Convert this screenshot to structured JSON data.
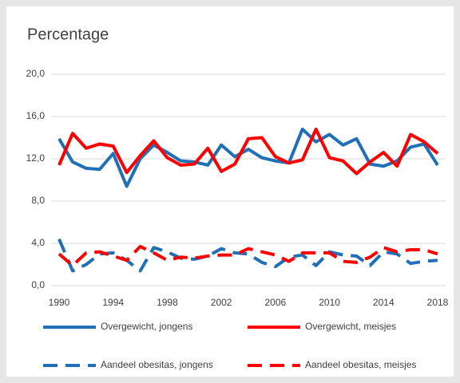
{
  "chart_data": {
    "type": "line",
    "title": "Percentage",
    "x": [
      1990,
      1991,
      1992,
      1993,
      1994,
      1995,
      1996,
      1997,
      1998,
      1999,
      2000,
      2001,
      2002,
      2003,
      2004,
      2005,
      2006,
      2007,
      2008,
      2009,
      2010,
      2011,
      2012,
      2013,
      2014,
      2015,
      2016,
      2017,
      2018
    ],
    "xlim": [
      1990,
      2018
    ],
    "xticks": [
      1990,
      1994,
      1998,
      2002,
      2006,
      2010,
      2014,
      2018
    ],
    "ylim": [
      0,
      20
    ],
    "yticks": [
      {
        "value": 0,
        "label": "0,0"
      },
      {
        "value": 4,
        "label": "4,0"
      },
      {
        "value": 8,
        "label": "8,0"
      },
      {
        "value": 12,
        "label": "12,0"
      },
      {
        "value": 16,
        "label": "16,0"
      },
      {
        "value": 20,
        "label": "20,0"
      }
    ],
    "grid": true,
    "legend": "bottom",
    "series": [
      {
        "name": "Overgewicht, jongens",
        "color": "#1f70b8",
        "dashed": false,
        "values": [
          13.9,
          11.7,
          11.1,
          11.0,
          12.5,
          9.4,
          12.0,
          13.3,
          12.6,
          11.8,
          11.7,
          11.4,
          13.3,
          12.2,
          12.9,
          12.1,
          11.8,
          11.6,
          14.8,
          13.6,
          14.3,
          13.3,
          13.9,
          11.5,
          11.3,
          11.8,
          13.1,
          13.4,
          11.4
        ]
      },
      {
        "name": "Overgewicht, meisjes",
        "color": "#ff0000",
        "dashed": false,
        "values": [
          11.4,
          14.4,
          13.0,
          13.4,
          13.2,
          10.7,
          12.3,
          13.7,
          12.1,
          11.4,
          11.5,
          13.0,
          10.8,
          11.5,
          13.9,
          14.0,
          12.2,
          11.6,
          11.9,
          14.8,
          12.1,
          11.8,
          10.6,
          11.7,
          12.6,
          11.3,
          14.3,
          13.6,
          12.5
        ]
      },
      {
        "name": "Aandeel obesitas, jongens",
        "color": "#1f70b8",
        "dashed": true,
        "values": [
          4.4,
          1.4,
          2.0,
          3.0,
          3.1,
          2.4,
          1.4,
          3.6,
          3.2,
          2.6,
          2.5,
          2.8,
          3.5,
          3.1,
          3.0,
          2.2,
          1.8,
          2.7,
          2.9,
          1.9,
          3.2,
          2.9,
          2.8,
          1.9,
          3.2,
          3.0,
          2.1,
          2.3,
          2.4
        ]
      },
      {
        "name": "Aandeel obesitas, meisjes",
        "color": "#ff0000",
        "dashed": true,
        "values": [
          3.0,
          1.9,
          3.1,
          3.2,
          2.8,
          2.4,
          3.7,
          3.1,
          2.4,
          2.7,
          2.6,
          2.8,
          2.9,
          2.9,
          3.5,
          3.2,
          2.9,
          2.3,
          3.1,
          3.1,
          3.1,
          2.3,
          2.2,
          2.7,
          3.6,
          3.2,
          3.4,
          3.4,
          3.0
        ]
      }
    ]
  }
}
